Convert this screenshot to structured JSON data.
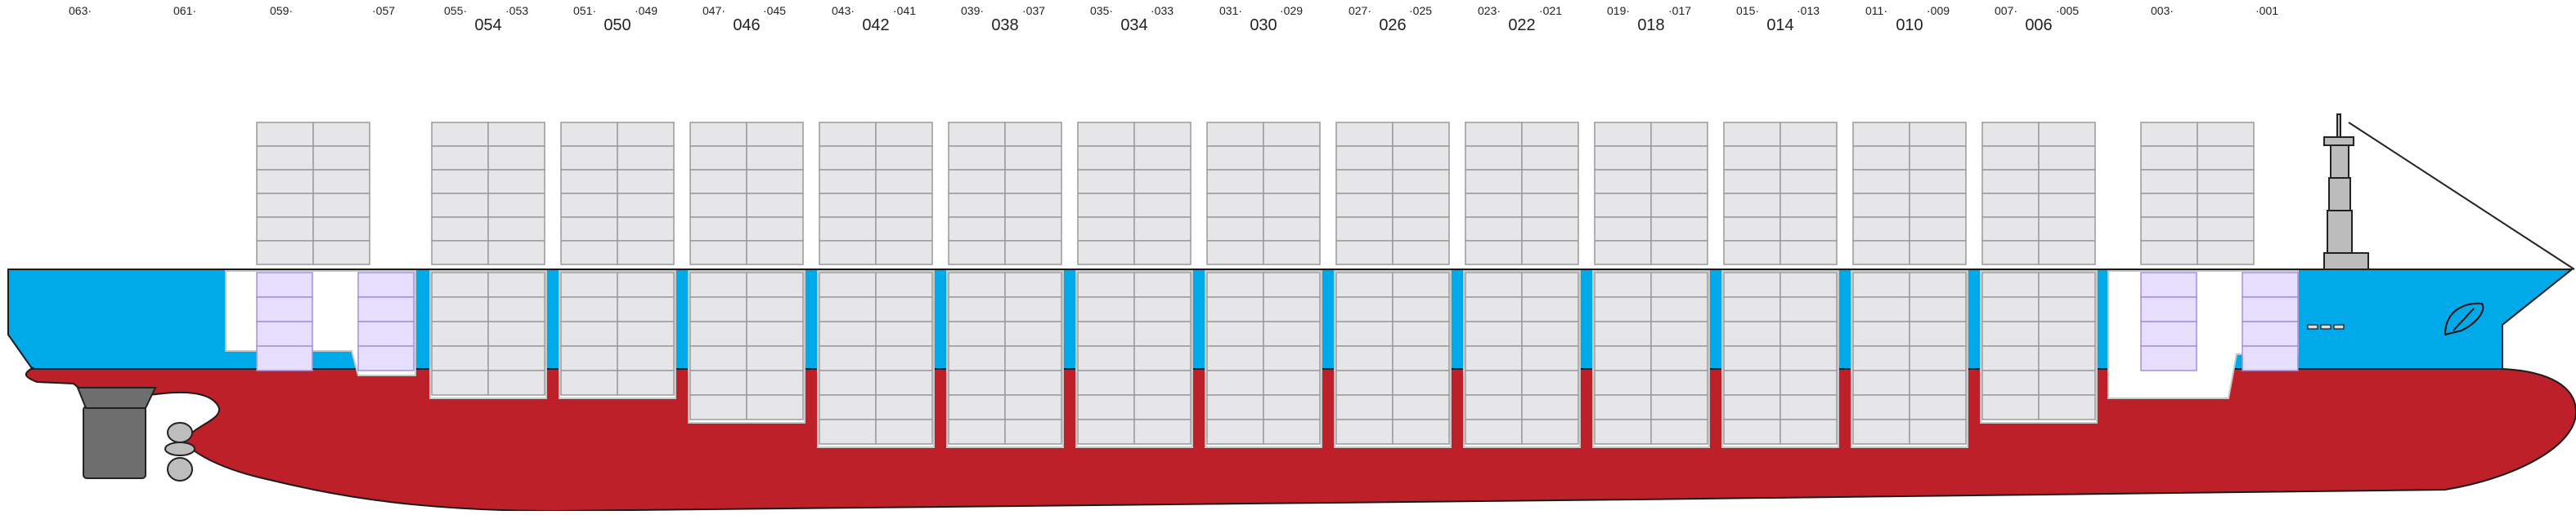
{
  "bay_labels": {
    "odd": [
      "063",
      "061",
      "059",
      "057",
      "055",
      "053",
      "051",
      "049",
      "047",
      "045",
      "043",
      "041",
      "039",
      "037",
      "035",
      "033",
      "031",
      "029",
      "027",
      "025",
      "023",
      "021",
      "019",
      "017",
      "015",
      "013",
      "011",
      "009",
      "007",
      "005",
      "003",
      "001"
    ],
    "forty_ft": [
      "054",
      "050",
      "046",
      "042",
      "038",
      "034",
      "030",
      "026",
      "022",
      "018",
      "014",
      "010",
      "006"
    ]
  },
  "colors": {
    "hull_red": "#be2029",
    "hull_blue": "#00a9e8",
    "container_grey": "#e6e6e9",
    "container_purple": "#e5defc",
    "container_border": "#9a9a9a",
    "purple_border": "#a58ee2",
    "machinery_grey": "#6e6e6e"
  },
  "legend_icons": [
    "bridge-mast-icon",
    "rudder-icon",
    "propeller-icon",
    "bow-logo-icon"
  ]
}
